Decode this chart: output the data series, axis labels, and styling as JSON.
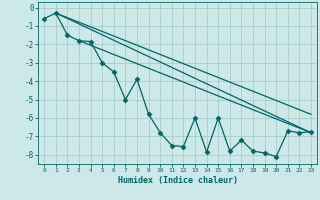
{
  "xlabel": "Humidex (Indice chaleur)",
  "background_color": "#cce8e8",
  "grid_color": "#aacccc",
  "line_color": "#006666",
  "xlim": [
    -0.5,
    23.5
  ],
  "ylim": [
    -8.5,
    0.3
  ],
  "xticks": [
    0,
    1,
    2,
    3,
    4,
    5,
    6,
    7,
    8,
    9,
    10,
    11,
    12,
    13,
    14,
    15,
    16,
    17,
    18,
    19,
    20,
    21,
    22,
    23
  ],
  "yticks": [
    0,
    -1,
    -2,
    -3,
    -4,
    -5,
    -6,
    -7,
    -8
  ],
  "zigzag_x": [
    0,
    1,
    2,
    3,
    4,
    5,
    6,
    7,
    8,
    9,
    10,
    11,
    12,
    13,
    14,
    15,
    16,
    17,
    18,
    19,
    20,
    21,
    22,
    23
  ],
  "zigzag_y": [
    -0.6,
    -0.3,
    -1.5,
    -1.8,
    -1.85,
    -3.0,
    -3.5,
    -5.0,
    -3.9,
    -5.8,
    -6.8,
    -7.5,
    -7.55,
    -6.0,
    -7.85,
    -6.0,
    -7.8,
    -7.2,
    -7.8,
    -7.9,
    -8.1,
    -6.7,
    -6.8,
    -6.75
  ],
  "line1_x": [
    1,
    23
  ],
  "line1_y": [
    -0.3,
    -5.8
  ],
  "line2_x": [
    1,
    23
  ],
  "line2_y": [
    -0.3,
    -6.8
  ],
  "line3_x": [
    3,
    23
  ],
  "line3_y": [
    -1.8,
    -6.8
  ]
}
